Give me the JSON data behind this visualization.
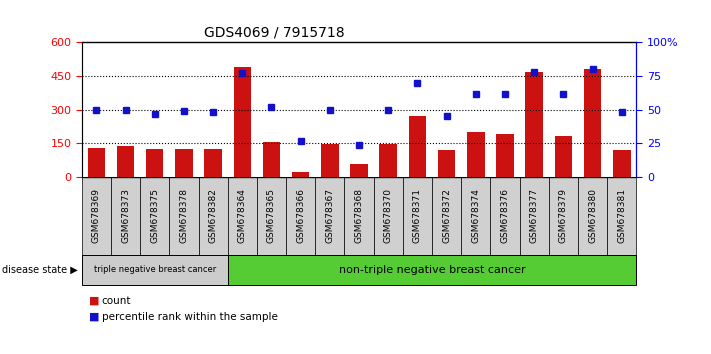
{
  "title": "GDS4069 / 7915718",
  "samples": [
    "GSM678369",
    "GSM678373",
    "GSM678375",
    "GSM678378",
    "GSM678382",
    "GSM678364",
    "GSM678365",
    "GSM678366",
    "GSM678367",
    "GSM678368",
    "GSM678370",
    "GSM678371",
    "GSM678372",
    "GSM678374",
    "GSM678376",
    "GSM678377",
    "GSM678379",
    "GSM678380",
    "GSM678381"
  ],
  "counts": [
    130,
    140,
    125,
    125,
    125,
    490,
    155,
    22,
    145,
    60,
    145,
    270,
    120,
    200,
    190,
    470,
    185,
    480,
    120
  ],
  "percentiles": [
    50,
    50,
    47,
    49,
    48,
    77,
    52,
    27,
    50,
    24,
    50,
    70,
    45,
    62,
    62,
    78,
    62,
    80,
    48
  ],
  "ylim_left": [
    0,
    600
  ],
  "ylim_right": [
    0,
    100
  ],
  "yticks_left": [
    0,
    150,
    300,
    450,
    600
  ],
  "yticks_right": [
    0,
    25,
    50,
    75,
    100
  ],
  "group1_label": "triple negative breast cancer",
  "group2_label": "non-triple negative breast cancer",
  "group1_count": 5,
  "group2_count": 14,
  "bar_color": "#cc1111",
  "dot_color": "#1111cc",
  "legend_count_label": "count",
  "legend_pct_label": "percentile rank within the sample",
  "bg_color": "#ffffff",
  "group1_bg": "#cccccc",
  "group2_bg": "#55cc33",
  "disease_state_label": "disease state"
}
